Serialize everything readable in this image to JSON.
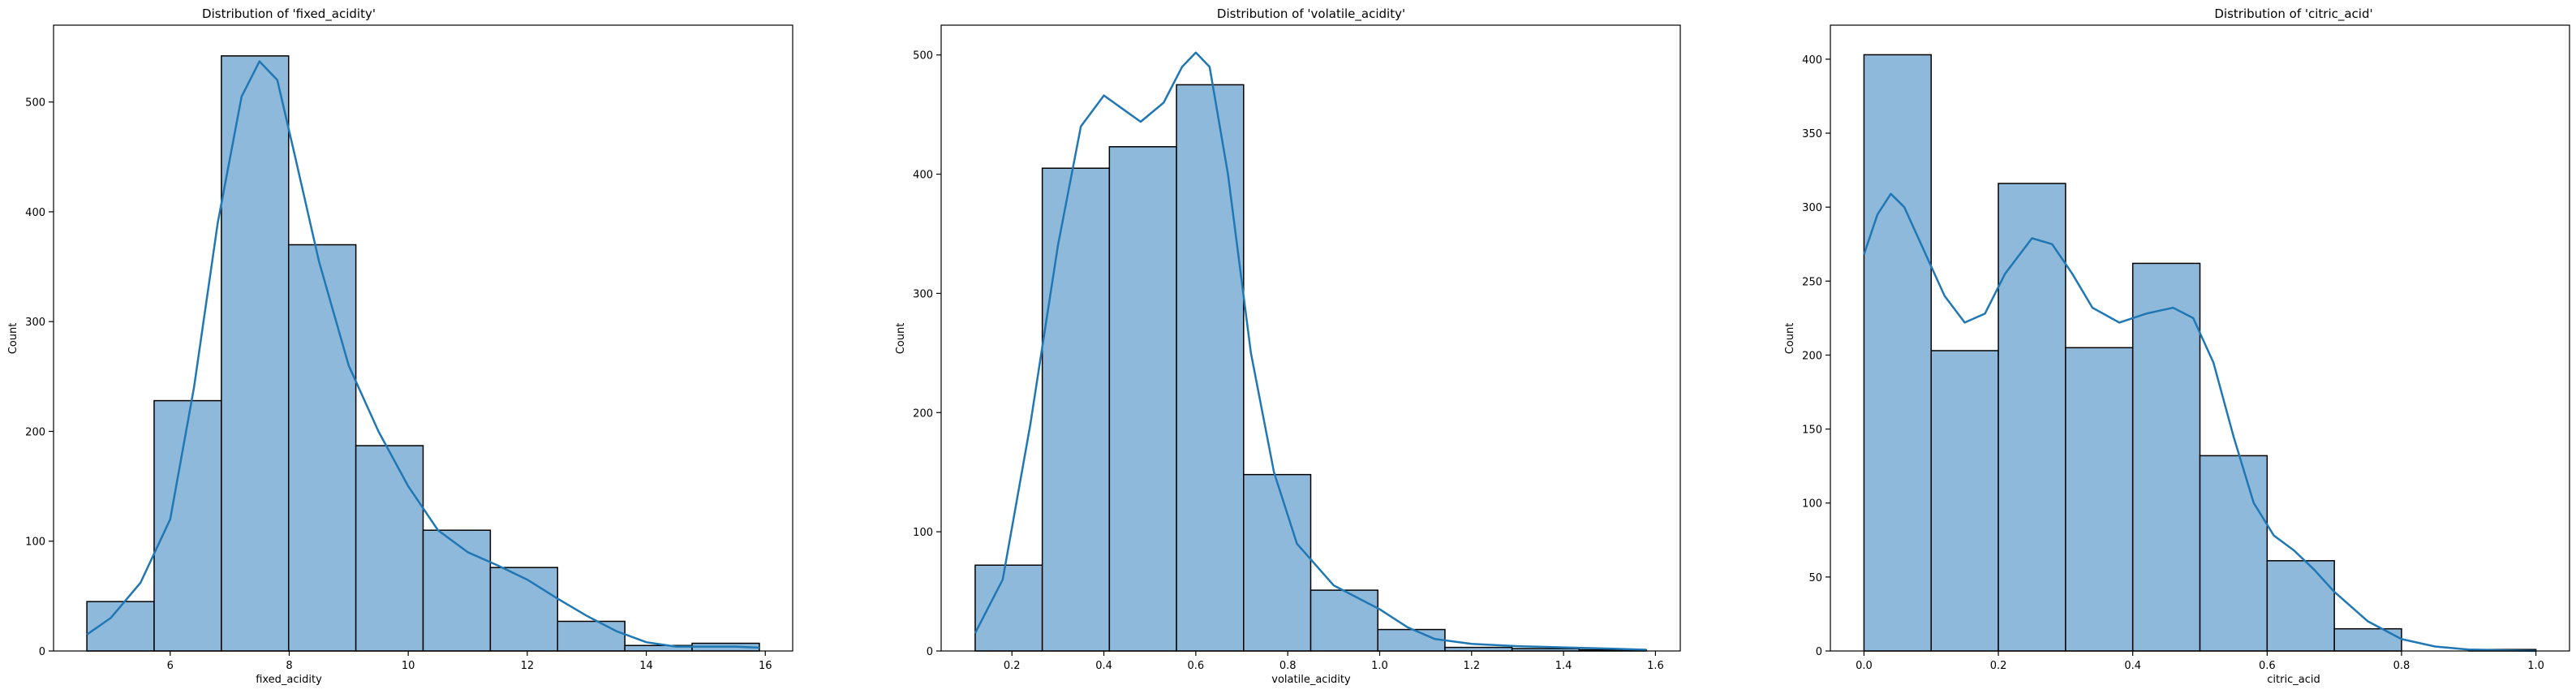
{
  "chart_data": [
    {
      "type": "bar",
      "title": "Distribution of 'fixed_acidity'",
      "xlabel": "fixed_acidity",
      "ylabel": "Count",
      "xlim": [
        4.04,
        16.46
      ],
      "ylim": [
        0,
        570
      ],
      "xticks": [
        6,
        8,
        10,
        12,
        14,
        16
      ],
      "yticks": [
        0,
        100,
        200,
        300,
        400,
        500
      ],
      "bin_edges": [
        4.6,
        5.73,
        6.86,
        7.99,
        9.12,
        10.25,
        11.38,
        12.51,
        13.64,
        14.77,
        15.9
      ],
      "values": [
        45,
        228,
        542,
        370,
        187,
        110,
        76,
        27,
        5,
        7
      ],
      "kde": [
        [
          4.6,
          15
        ],
        [
          5.0,
          30
        ],
        [
          5.5,
          62
        ],
        [
          6.0,
          120
        ],
        [
          6.4,
          240
        ],
        [
          6.8,
          390
        ],
        [
          7.2,
          505
        ],
        [
          7.5,
          537
        ],
        [
          7.8,
          520
        ],
        [
          8.1,
          450
        ],
        [
          8.5,
          355
        ],
        [
          9.0,
          260
        ],
        [
          9.5,
          200
        ],
        [
          10.0,
          150
        ],
        [
          10.5,
          110
        ],
        [
          11.0,
          90
        ],
        [
          11.5,
          78
        ],
        [
          12.0,
          65
        ],
        [
          12.5,
          48
        ],
        [
          13.0,
          32
        ],
        [
          13.5,
          18
        ],
        [
          14.0,
          8
        ],
        [
          14.5,
          4
        ],
        [
          15.0,
          4
        ],
        [
          15.5,
          4
        ],
        [
          15.9,
          3
        ]
      ],
      "grid": false,
      "legend": "none",
      "colors": {
        "bar": "#8fb9db",
        "edge": "#000000",
        "kde": "#1f77b4"
      }
    },
    {
      "type": "bar",
      "title": "Distribution of 'volatile_acidity'",
      "xlabel": "volatile_acidity",
      "ylabel": "Count",
      "xlim": [
        0.046,
        1.654
      ],
      "ylim": [
        0,
        525
      ],
      "xticks": [
        0.2,
        0.4,
        0.6,
        0.8,
        1.0,
        1.2,
        1.4,
        1.6
      ],
      "yticks": [
        0,
        100,
        200,
        300,
        400,
        500
      ],
      "bin_edges": [
        0.12,
        0.266,
        0.412,
        0.558,
        0.704,
        0.85,
        0.996,
        1.142,
        1.288,
        1.434,
        1.58
      ],
      "values": [
        72,
        405,
        423,
        475,
        148,
        51,
        18,
        3,
        2,
        1
      ],
      "kde": [
        [
          0.12,
          15
        ],
        [
          0.18,
          60
        ],
        [
          0.24,
          190
        ],
        [
          0.3,
          340
        ],
        [
          0.35,
          440
        ],
        [
          0.4,
          466
        ],
        [
          0.44,
          455
        ],
        [
          0.48,
          444
        ],
        [
          0.53,
          460
        ],
        [
          0.57,
          490
        ],
        [
          0.6,
          502
        ],
        [
          0.63,
          490
        ],
        [
          0.67,
          400
        ],
        [
          0.72,
          250
        ],
        [
          0.77,
          150
        ],
        [
          0.82,
          90
        ],
        [
          0.9,
          55
        ],
        [
          1.0,
          35
        ],
        [
          1.06,
          20
        ],
        [
          1.12,
          10
        ],
        [
          1.2,
          6
        ],
        [
          1.3,
          4
        ],
        [
          1.4,
          3
        ],
        [
          1.5,
          2
        ],
        [
          1.58,
          1
        ]
      ],
      "grid": false,
      "legend": "none",
      "colors": {
        "bar": "#8fb9db",
        "edge": "#000000",
        "kde": "#1f77b4"
      }
    },
    {
      "type": "bar",
      "title": "Distribution of 'citric_acid'",
      "xlabel": "citric_acid",
      "ylabel": "Count",
      "xlim": [
        -0.05,
        1.05
      ],
      "ylim": [
        0,
        423
      ],
      "xticks": [
        0.0,
        0.2,
        0.4,
        0.6,
        0.8,
        1.0
      ],
      "yticks": [
        0,
        50,
        100,
        150,
        200,
        250,
        300,
        350,
        400
      ],
      "bin_edges": [
        0.0,
        0.1,
        0.2,
        0.3,
        0.4,
        0.5,
        0.6,
        0.7,
        0.8,
        0.9,
        1.0
      ],
      "values": [
        403,
        203,
        316,
        205,
        262,
        132,
        61,
        15,
        0,
        1
      ],
      "kde": [
        [
          0.0,
          268
        ],
        [
          0.02,
          295
        ],
        [
          0.04,
          309
        ],
        [
          0.06,
          300
        ],
        [
          0.09,
          270
        ],
        [
          0.12,
          240
        ],
        [
          0.15,
          222
        ],
        [
          0.18,
          228
        ],
        [
          0.21,
          255
        ],
        [
          0.25,
          279
        ],
        [
          0.28,
          275
        ],
        [
          0.31,
          255
        ],
        [
          0.34,
          232
        ],
        [
          0.38,
          222
        ],
        [
          0.42,
          228
        ],
        [
          0.46,
          232
        ],
        [
          0.49,
          225
        ],
        [
          0.52,
          195
        ],
        [
          0.55,
          145
        ],
        [
          0.58,
          100
        ],
        [
          0.61,
          78
        ],
        [
          0.64,
          68
        ],
        [
          0.67,
          55
        ],
        [
          0.7,
          40
        ],
        [
          0.75,
          20
        ],
        [
          0.8,
          8
        ],
        [
          0.85,
          3
        ],
        [
          0.9,
          1
        ],
        [
          1.0,
          0
        ]
      ],
      "grid": false,
      "legend": "none",
      "colors": {
        "bar": "#8fb9db",
        "edge": "#000000",
        "kde": "#1f77b4"
      }
    }
  ]
}
